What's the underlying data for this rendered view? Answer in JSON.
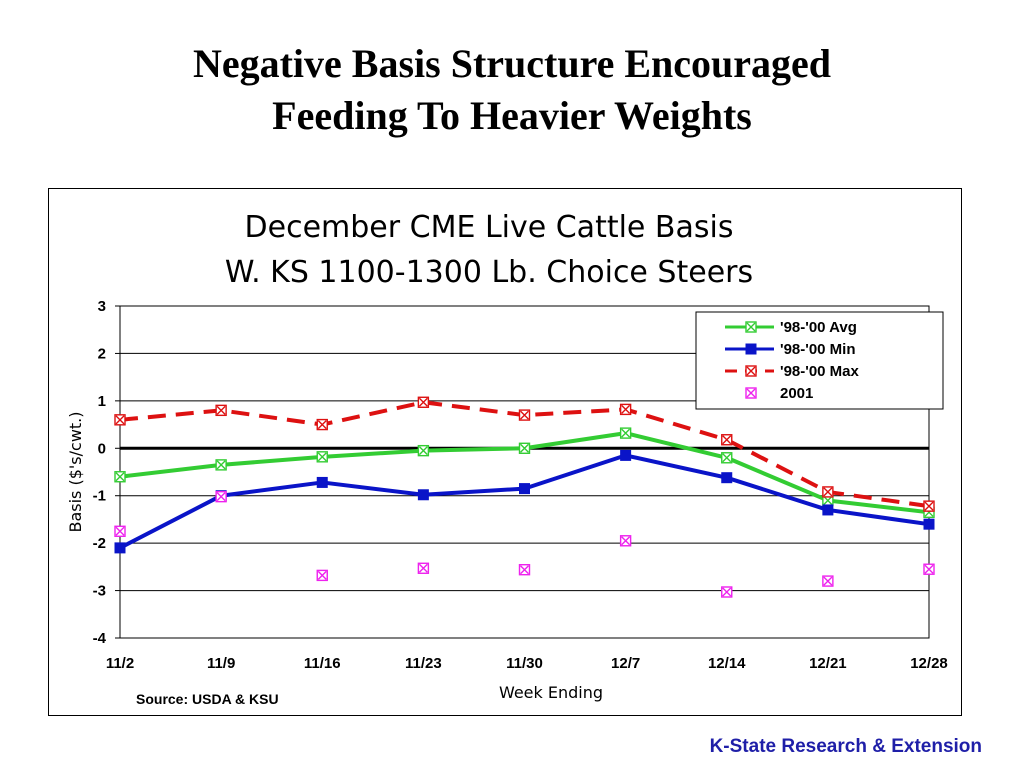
{
  "slide": {
    "title_line1": "Negative Basis Structure Encouraged",
    "title_line2": "Feeding To Heavier Weights",
    "footer": "K-State Research & Extension"
  },
  "chart_data": {
    "type": "line",
    "title": [
      "December CME Live Cattle Basis",
      "W. KS 1100-1300 Lb. Choice Steers"
    ],
    "xlabel": "Week Ending",
    "ylabel": "Basis ($'s/cwt.)",
    "source": "Source:  USDA & KSU",
    "categories": [
      "11/2",
      "11/9",
      "11/16",
      "11/23",
      "11/30",
      "12/7",
      "12/14",
      "12/21",
      "12/28"
    ],
    "ylim": [
      -4,
      3
    ],
    "yticks": [
      3,
      2,
      1,
      0,
      -1,
      -2,
      -3,
      -4
    ],
    "grid": true,
    "legend_position": "top-right",
    "series": [
      {
        "name": "'98-'00 Avg",
        "color": "#33cc33",
        "style": "solid",
        "marker": "x-square",
        "values": [
          -0.6,
          -0.35,
          -0.18,
          -0.05,
          0.0,
          0.32,
          -0.2,
          -1.1,
          -1.35
        ]
      },
      {
        "name": "'98-'00 Min",
        "color": "#0a14c8",
        "style": "solid",
        "marker": "square",
        "values": [
          -2.1,
          -1.0,
          -0.72,
          -0.98,
          -0.85,
          -0.15,
          -0.62,
          -1.3,
          -1.6
        ]
      },
      {
        "name": "'98-'00 Max",
        "color": "#dd1111",
        "style": "dashed",
        "marker": "x-square",
        "values": [
          0.6,
          0.8,
          0.5,
          0.97,
          0.7,
          0.82,
          0.18,
          -0.92,
          -1.22
        ]
      },
      {
        "name": "2001",
        "color": "#ee22ee",
        "style": "none",
        "marker": "x-square",
        "values": [
          -1.75,
          -1.02,
          -2.68,
          -2.53,
          -2.56,
          -1.95,
          -3.03,
          -2.8,
          -2.55
        ]
      }
    ]
  }
}
